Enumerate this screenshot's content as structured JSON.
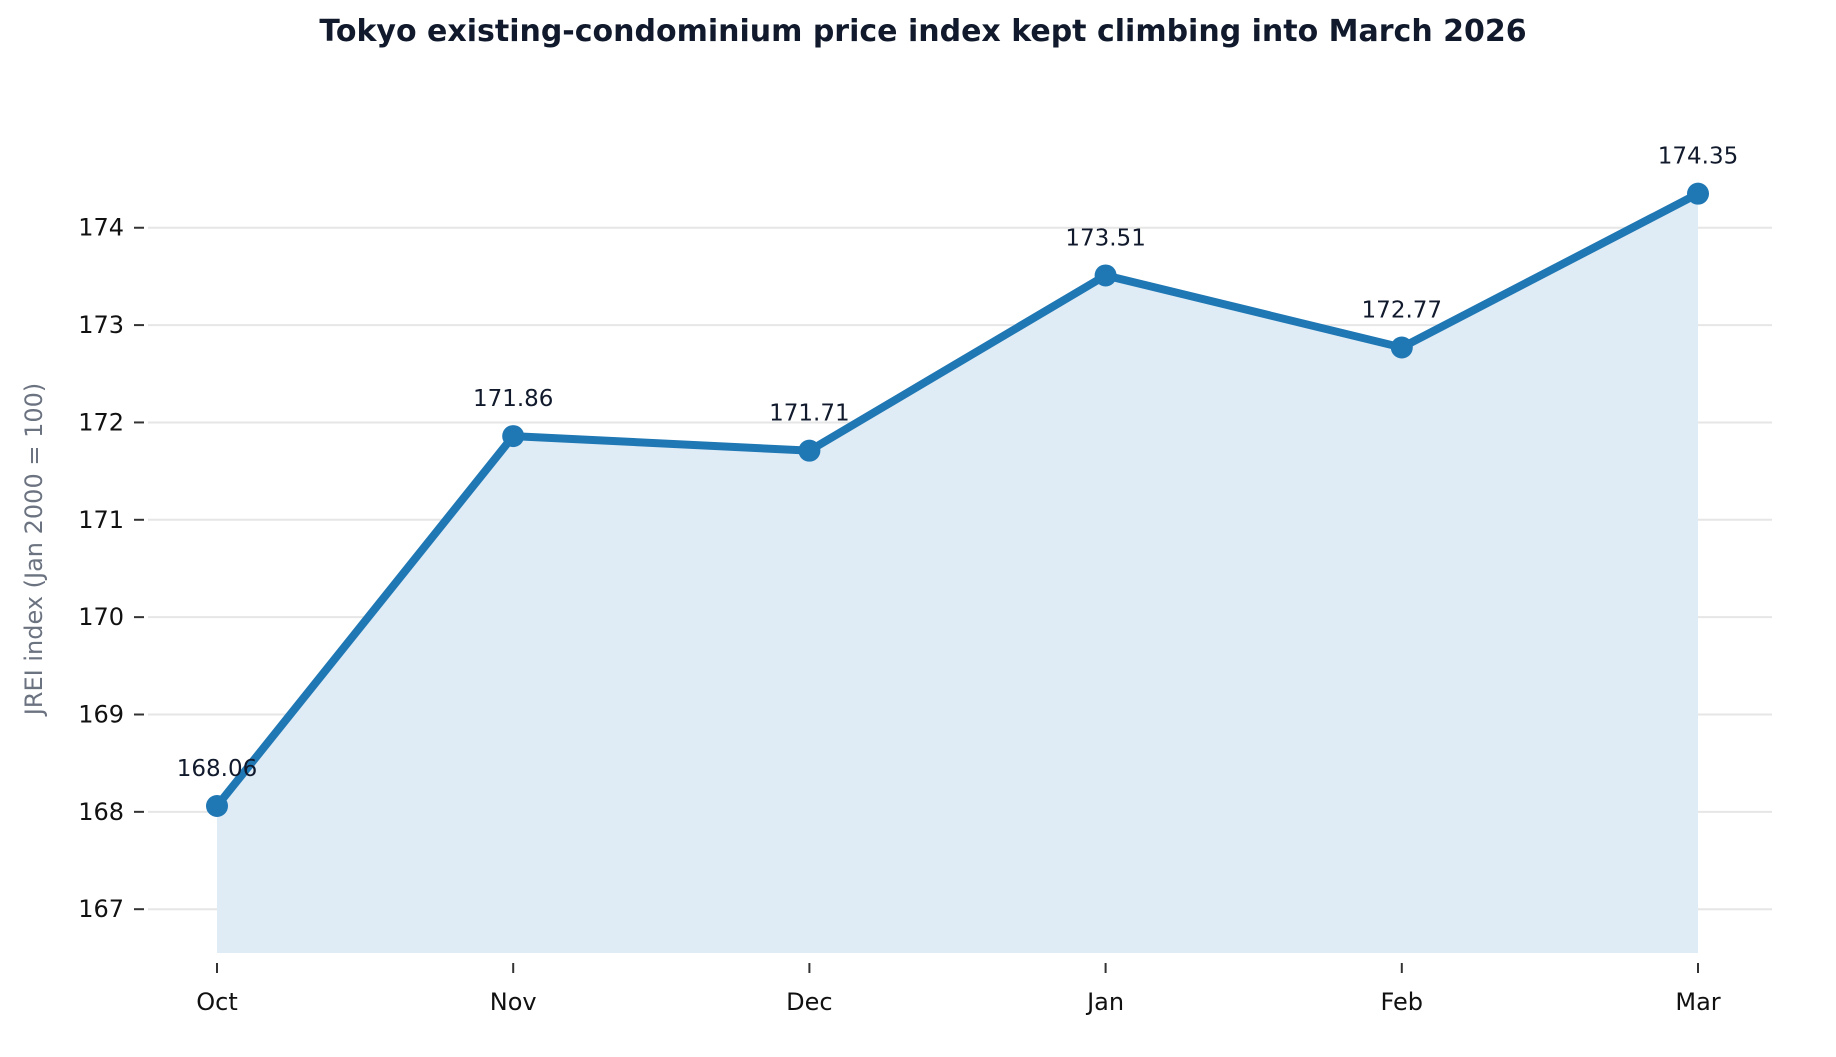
{
  "chart_data": {
    "type": "area",
    "title": "Tokyo existing-condominium price index kept climbing into March 2026",
    "xlabel": "",
    "ylabel": "JREI index (Jan 2000 = 100)",
    "categories": [
      "Oct",
      "Nov",
      "Dec",
      "Jan",
      "Feb",
      "Mar"
    ],
    "series": [
      {
        "values": [
          168.06,
          171.86,
          171.71,
          173.51,
          172.77,
          174.35
        ]
      }
    ],
    "data_labels": [
      "168.06",
      "171.86",
      "171.71",
      "173.51",
      "172.77",
      "174.35"
    ],
    "yticks": [
      167,
      168,
      169,
      170,
      171,
      172,
      173,
      174
    ],
    "ylim": [
      166.55,
      174.85
    ],
    "grid": "horizontal",
    "legend": "none",
    "colors": {
      "line": "#1f77b4",
      "fill": "#dfebf5",
      "grid": "#e6e6e6",
      "title": "#111a2c",
      "axis_label": "#6b7280",
      "tick_text": "#111111",
      "data_label": "#111a2c"
    }
  }
}
